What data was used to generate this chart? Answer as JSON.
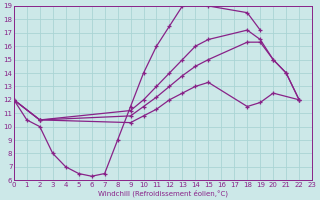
{
  "xlabel": "Windchill (Refroidissement éolien,°C)",
  "background_color": "#cce8e8",
  "grid_color": "#aad4d4",
  "line_color": "#882288",
  "xlim": [
    0,
    23
  ],
  "ylim": [
    6,
    19
  ],
  "xticks": [
    0,
    1,
    2,
    3,
    4,
    5,
    6,
    7,
    8,
    9,
    10,
    11,
    12,
    13,
    14,
    15,
    16,
    17,
    18,
    19,
    20,
    21,
    22,
    23
  ],
  "yticks": [
    6,
    7,
    8,
    9,
    10,
    11,
    12,
    13,
    14,
    15,
    16,
    17,
    18,
    19
  ],
  "s1_x": [
    0,
    1,
    2,
    3,
    4,
    5,
    6,
    7,
    8,
    9,
    10,
    11,
    12,
    13,
    14,
    15,
    18,
    19
  ],
  "s1_y": [
    12.0,
    10.5,
    10.0,
    8.0,
    7.0,
    6.5,
    6.3,
    6.5,
    9.0,
    11.5,
    14.0,
    16.0,
    17.5,
    19.0,
    19.3,
    19.0,
    18.5,
    17.2
  ],
  "s2_x": [
    0,
    2,
    9,
    10,
    11,
    12,
    13,
    14,
    15,
    18,
    19,
    20,
    21,
    22
  ],
  "s2_y": [
    12.0,
    10.5,
    11.2,
    12.0,
    13.0,
    14.0,
    15.0,
    16.0,
    16.5,
    17.2,
    16.5,
    15.0,
    14.0,
    12.0
  ],
  "s3_x": [
    0,
    2,
    9,
    10,
    11,
    12,
    13,
    14,
    15,
    18,
    19,
    20,
    21,
    22
  ],
  "s3_y": [
    12.0,
    10.5,
    10.8,
    11.5,
    12.2,
    13.0,
    13.8,
    14.5,
    15.0,
    16.3,
    16.3,
    15.0,
    14.0,
    12.0
  ],
  "s4_x": [
    0,
    2,
    9,
    10,
    11,
    12,
    13,
    14,
    15,
    18,
    19,
    20,
    22
  ],
  "s4_y": [
    12.0,
    10.5,
    10.3,
    10.8,
    11.3,
    12.0,
    12.5,
    13.0,
    13.3,
    11.5,
    11.8,
    12.5,
    12.0
  ],
  "marker_size": 3,
  "line_width": 0.9
}
